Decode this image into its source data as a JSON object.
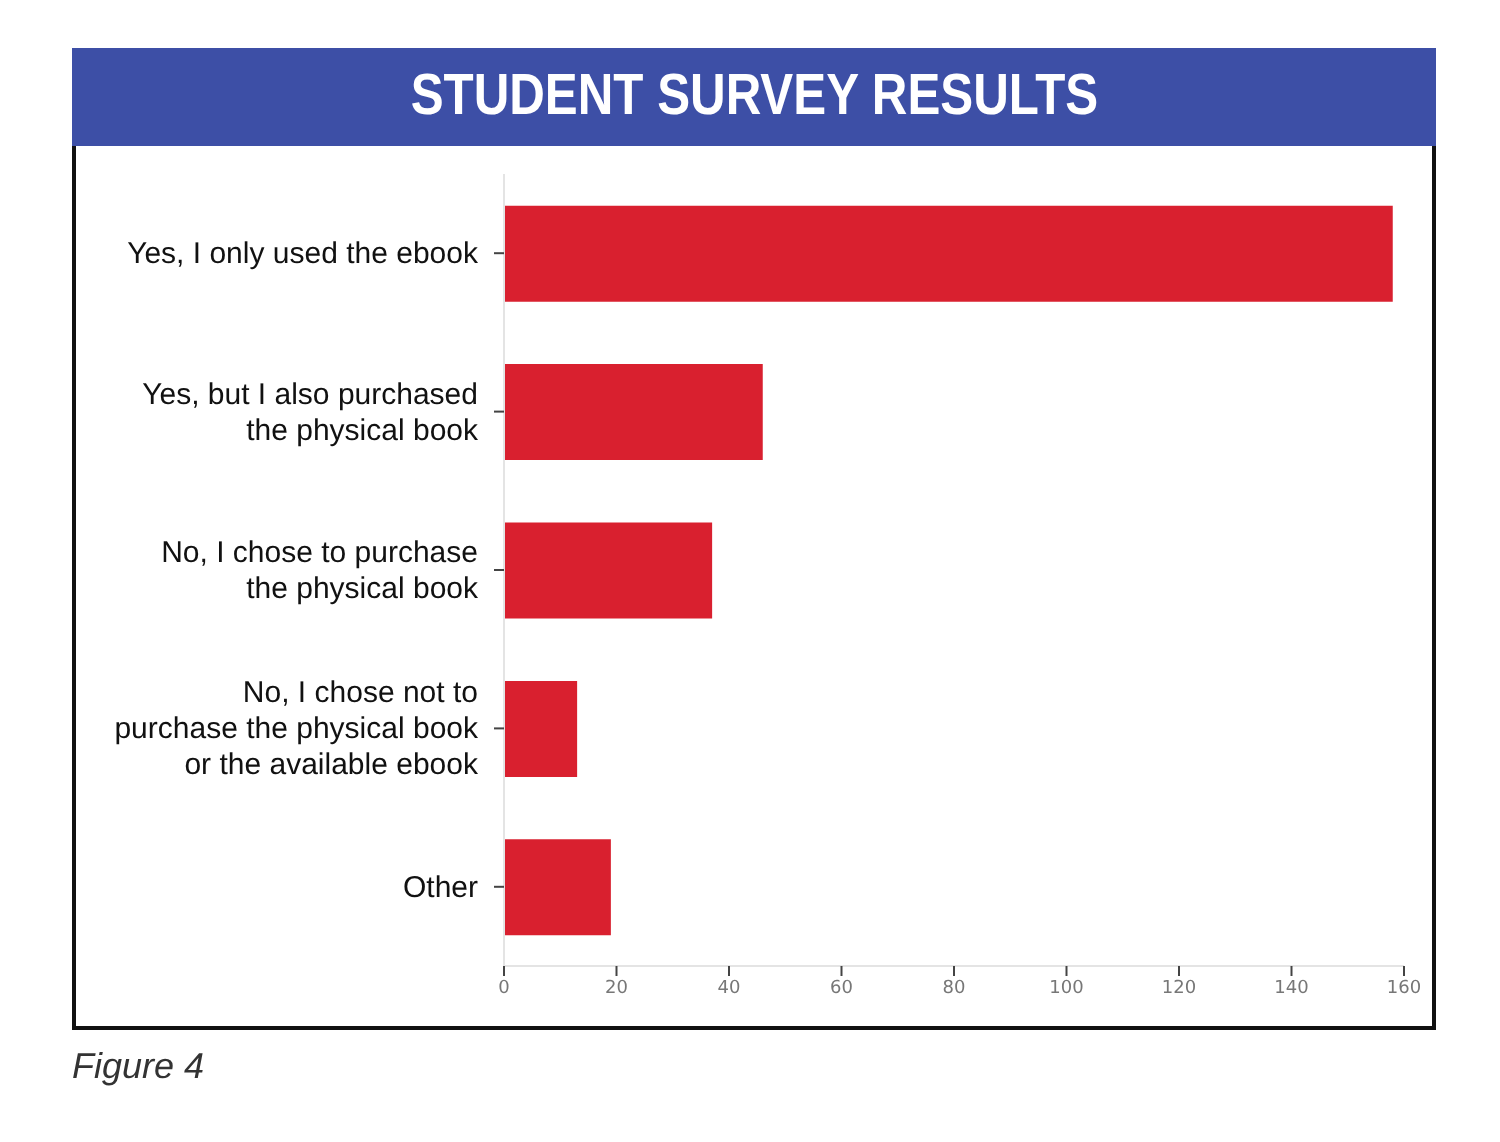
{
  "chart_data": {
    "type": "bar",
    "orientation": "horizontal",
    "title": "STUDENT SURVEY RESULTS",
    "categories": [
      "Yes, I only used the ebook",
      "Yes, but I also purchased the physical book",
      "No, I chose to purchase the physical book",
      "No, I chose not to purchase the physical book or the available ebook",
      "Other"
    ],
    "values": [
      158,
      46,
      37,
      13,
      19
    ],
    "color": "#d9202f",
    "xlim": [
      0,
      160
    ],
    "xticks": [
      0,
      20,
      40,
      60,
      80,
      100,
      120,
      140,
      160
    ],
    "grid": false,
    "legend": false,
    "annotations": [
      "Figure 4"
    ]
  }
}
